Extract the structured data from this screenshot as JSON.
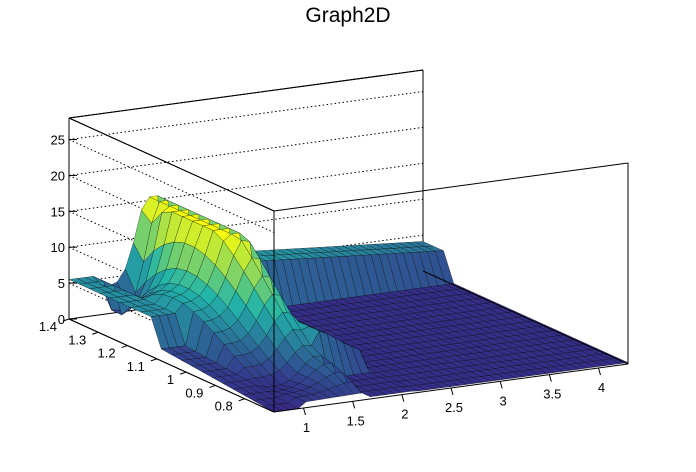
{
  "chart_data": {
    "type": "surface3d",
    "title": "Graph2D",
    "xlabel": "",
    "ylabel": "",
    "zlabel": "",
    "xlim": [
      0.7,
      4.3
    ],
    "ylim": [
      0.7,
      1.4
    ],
    "zlim": [
      0,
      28
    ],
    "x_ticks": [
      "1",
      "1.5",
      "2",
      "2.5",
      "3",
      "3.5",
      "4"
    ],
    "y_ticks": [
      "0.8",
      "0.9",
      "1",
      "1.1",
      "1.2",
      "1.3",
      "1.4"
    ],
    "z_ticks": [
      "0",
      "5",
      "10",
      "15",
      "20",
      "25"
    ],
    "grid": true,
    "colormap": "parula",
    "surface": {
      "x_range": [
        0.7,
        4.3
      ],
      "y_range": [
        0.7,
        1.4
      ],
      "back_ridge_height": 6.5,
      "outer_wall_height": 5.5,
      "peak_height": 15.5,
      "peak_x": 1.55,
      "floor_region_x_min": 2.1,
      "oscillation_region_x": [
        0.95,
        1.65
      ]
    }
  },
  "colors": {
    "axis": "#000000",
    "grid": "#000000",
    "low": "#352a87",
    "mid": "#21b5aa",
    "high": "#f9fb0e"
  }
}
